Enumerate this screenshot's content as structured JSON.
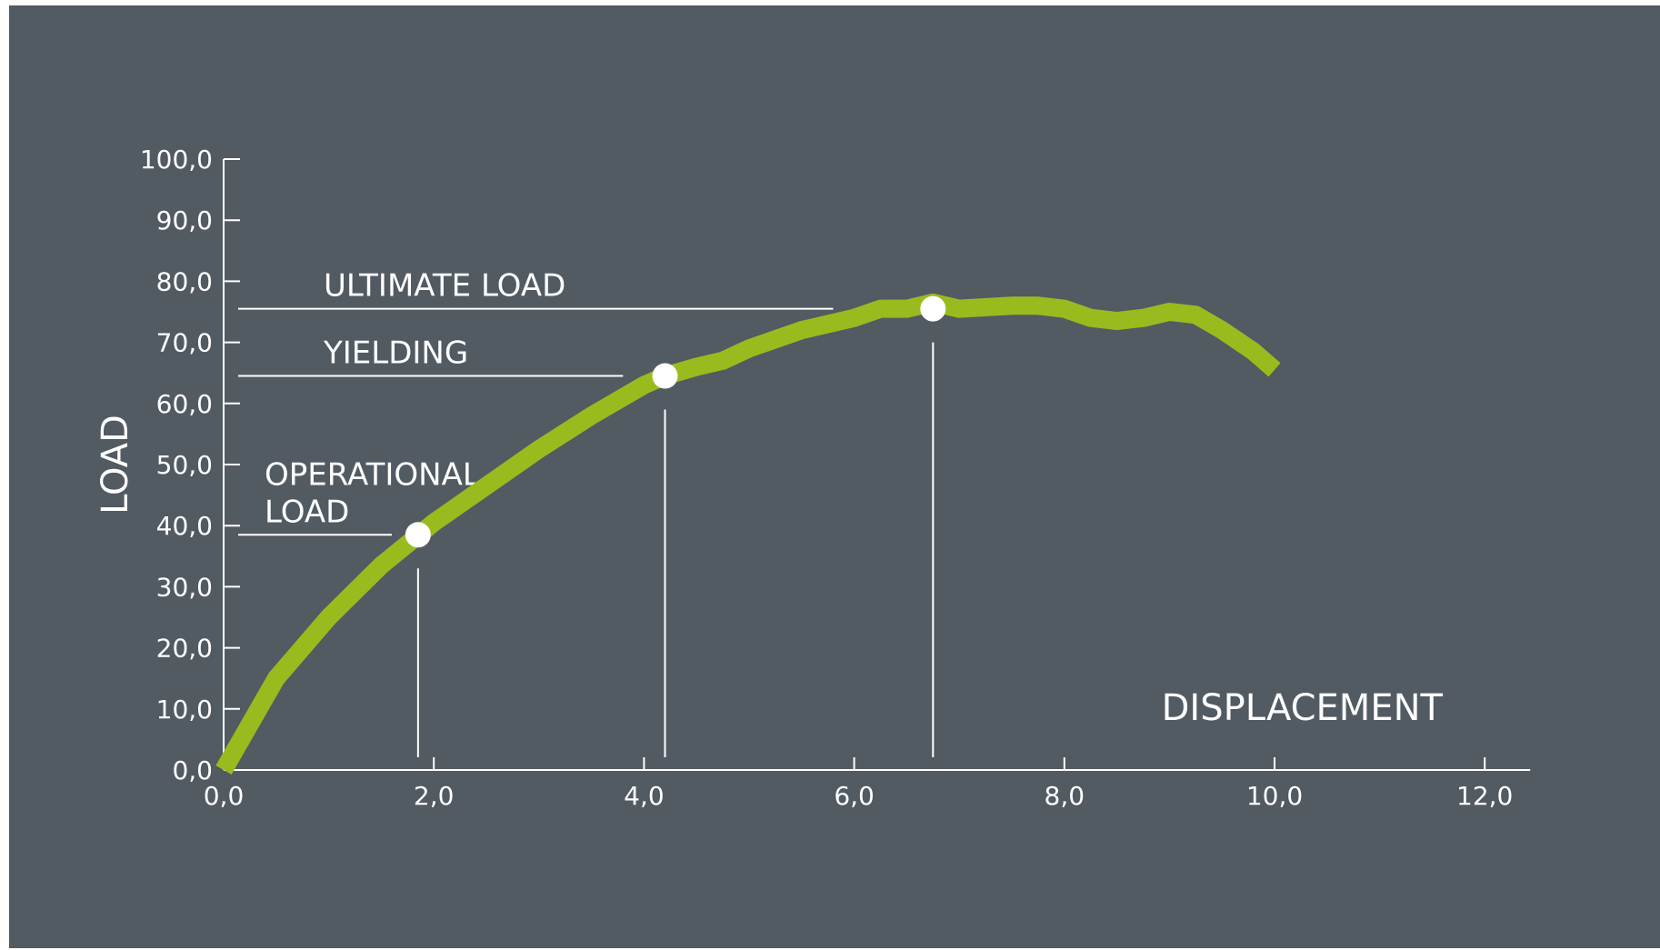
{
  "chart_data": {
    "type": "line",
    "xlabel": "DISPLACEMENT",
    "ylabel": "LOAD",
    "xlim": [
      0,
      12
    ],
    "ylim": [
      0,
      100
    ],
    "x_ticks": [
      "0,0",
      "2,0",
      "4,0",
      "6,0",
      "8,0",
      "10,0",
      "12,0"
    ],
    "y_ticks": [
      "0,0",
      "10,0",
      "20,0",
      "30,0",
      "40,0",
      "50,0",
      "60,0",
      "70,0",
      "80,0",
      "90,0",
      "100,0"
    ],
    "grid": false,
    "legend": "none",
    "series": [
      {
        "x": [
          0.0,
          0.5,
          1.0,
          1.5,
          2.0,
          2.5,
          3.0,
          3.5,
          4.0,
          4.2,
          4.5,
          4.75,
          5.0,
          5.5,
          6.0,
          6.25,
          6.5,
          6.75,
          7.0,
          7.5,
          7.75,
          8.0,
          8.25,
          8.5,
          8.75,
          9.0,
          9.25,
          9.5,
          9.8,
          10.0
        ],
        "y": [
          0.0,
          15.0,
          25.0,
          33.5,
          40.5,
          46.5,
          52.5,
          58.0,
          63.0,
          64.5,
          66.0,
          67.0,
          69.0,
          72.0,
          74.0,
          75.5,
          75.5,
          76.5,
          75.5,
          76.0,
          76.0,
          75.5,
          74.0,
          73.5,
          74.0,
          75.0,
          74.5,
          72.0,
          68.5,
          65.5
        ]
      }
    ],
    "color": "#99bb1e",
    "annotations": [
      {
        "label": [
          "ULTIMATE LOAD"
        ],
        "x": 6.75,
        "y": 75.5
      },
      {
        "label": [
          "YIELDING"
        ],
        "x": 4.2,
        "y": 64.5
      },
      {
        "label": [
          "OPERATIONAL",
          "LOAD"
        ],
        "x": 1.85,
        "y": 38.5
      }
    ]
  }
}
